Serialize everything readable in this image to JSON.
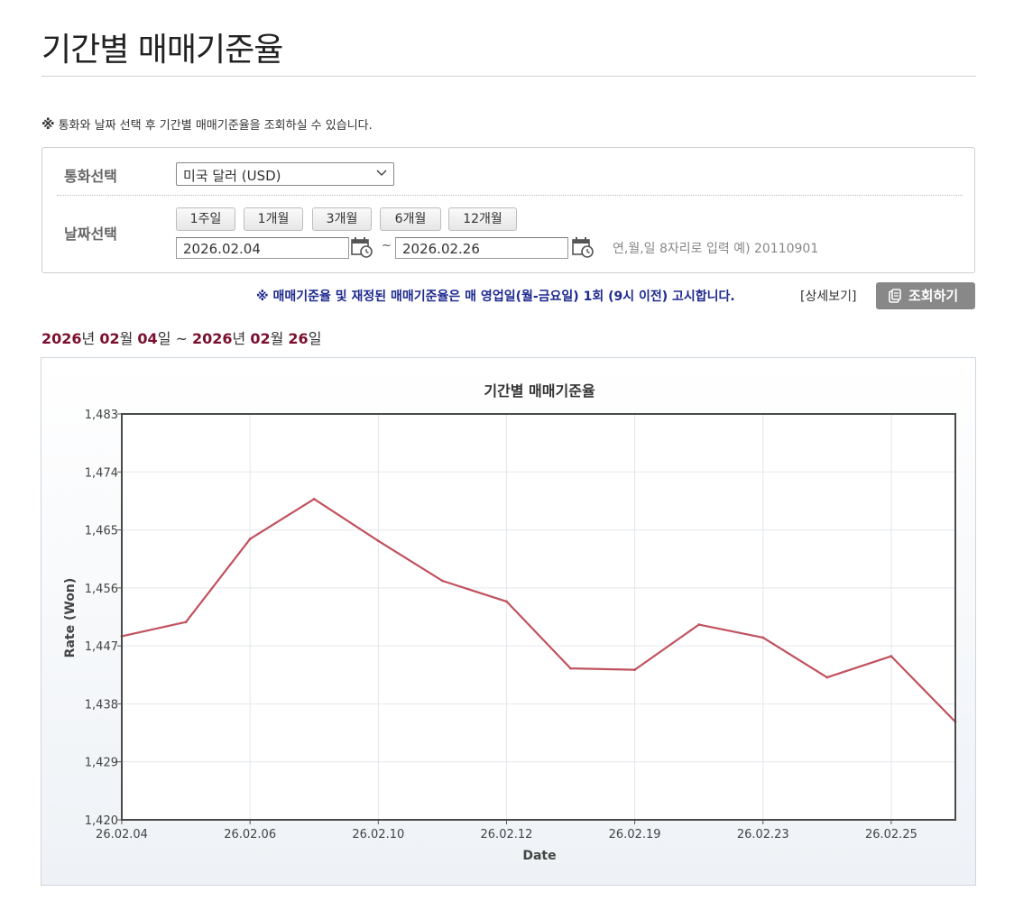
{
  "page": {
    "title": "기간별 매매기준율",
    "notice_mark": "※",
    "notice": "통화와 날짜 선택 후 기간별 매매기준율을 조회하실 수 있습니다."
  },
  "form": {
    "currency_label": "통화선택",
    "currency_value": "미국 달러 (USD)",
    "date_label": "날짜선택",
    "period_buttons": [
      "1주일",
      "1개월",
      "3개월",
      "6개월",
      "12개월"
    ],
    "start_date": "2026.02.04",
    "tilde": "~",
    "end_date": "2026.02.26",
    "date_hint": "연,월,일 8자리로 입력 예) 20110901"
  },
  "announce": "※ 매매기준율 및 재정된 매매기준율은 매 영업일(월-금요일) 1회 (9시 이전) 고시합니다.",
  "detail_link": "[상세보기]",
  "search_button": "조회하기",
  "range": {
    "start_year": "2026",
    "start_year_unit": "년 ",
    "start_month": "02",
    "start_month_unit": "월 ",
    "start_day": "04",
    "start_day_unit": "일 ~ ",
    "end_year": "2026",
    "end_year_unit": "년 ",
    "end_month": "02",
    "end_month_unit": "월 ",
    "end_day": "26",
    "end_day_unit": "일"
  },
  "colors": {
    "line": "#c0525e",
    "range_number": "#7a0f2e",
    "announce": "#1f2a8f",
    "search_button": "#888888"
  },
  "icons": {
    "select_arrow": "chevron-down-icon",
    "calendar": "calendar-icon",
    "search": "document-icon"
  },
  "chart_data": {
    "type": "line",
    "title": "기간별 매매기준율",
    "xlabel": "Date",
    "ylabel": "Rate (Won)",
    "ylim": [
      1420,
      1483
    ],
    "y_ticks": [
      "1,420",
      "1,429",
      "1,438",
      "1,447",
      "1,456",
      "1,465",
      "1,474",
      "1,483"
    ],
    "x_tick_labels": [
      "26.02.04",
      "26.02.06",
      "26.02.10",
      "26.02.12",
      "26.02.19",
      "26.02.23",
      "26.02.25"
    ],
    "x_tick_indices": [
      0,
      2,
      4,
      6,
      8,
      10,
      12
    ],
    "grid": true,
    "series": [
      {
        "dates": [
          "26.02.04",
          "26.02.05",
          "26.02.06",
          "26.02.09",
          "26.02.10",
          "26.02.11",
          "26.02.12",
          "26.02.13",
          "26.02.19",
          "26.02.20",
          "26.02.23",
          "26.02.24",
          "26.02.25",
          "26.02.26"
        ],
        "values": [
          1448.5,
          1450.7,
          1463.6,
          1469.8,
          1463.3,
          1457.1,
          1453.9,
          1443.5,
          1443.3,
          1450.3,
          1448.3,
          1442.1,
          1445.4,
          1435.2
        ]
      }
    ]
  }
}
